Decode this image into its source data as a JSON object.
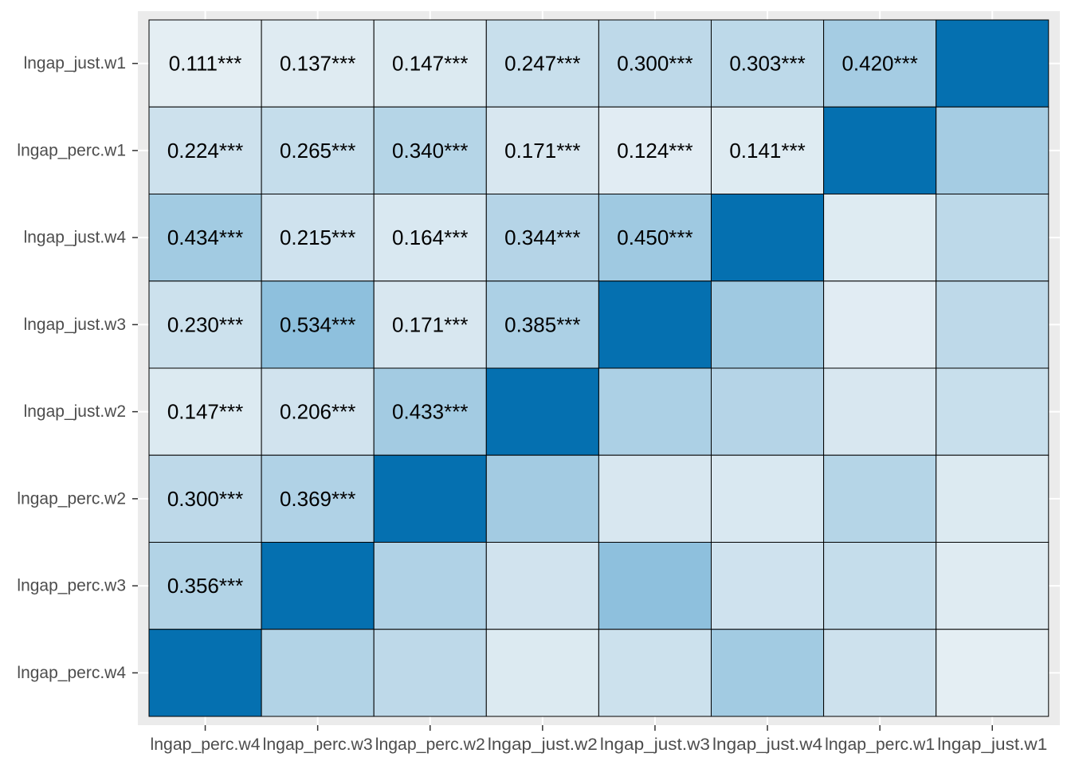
{
  "chart_data": {
    "type": "heatmap",
    "title": "",
    "xlabel": "",
    "ylabel": "",
    "x_categories": [
      "lngap_perc.w4",
      "lngap_perc.w3",
      "lngap_perc.w2",
      "lngap_just.w2",
      "lngap_just.w3",
      "lngap_just.w4",
      "lngap_perc.w1",
      "lngap_just.w1"
    ],
    "y_categories_top_to_bottom": [
      "lngap_just.w1",
      "lngap_perc.w1",
      "lngap_just.w4",
      "lngap_just.w3",
      "lngap_just.w2",
      "lngap_perc.w2",
      "lngap_perc.w3",
      "lngap_perc.w4"
    ],
    "values": [
      [
        0.111,
        0.137,
        0.147,
        0.247,
        0.3,
        0.303,
        0.42,
        1.0
      ],
      [
        0.224,
        0.265,
        0.34,
        0.171,
        0.124,
        0.141,
        1.0,
        0.42
      ],
      [
        0.434,
        0.215,
        0.164,
        0.344,
        0.45,
        1.0,
        0.141,
        0.303
      ],
      [
        0.23,
        0.534,
        0.171,
        0.385,
        1.0,
        0.45,
        0.124,
        0.3
      ],
      [
        0.147,
        0.206,
        0.433,
        1.0,
        0.385,
        0.344,
        0.171,
        0.247
      ],
      [
        0.3,
        0.369,
        1.0,
        0.433,
        0.171,
        0.164,
        0.34,
        0.147
      ],
      [
        0.356,
        1.0,
        0.369,
        0.206,
        0.534,
        0.215,
        0.265,
        0.137
      ],
      [
        1.0,
        0.356,
        0.3,
        0.147,
        0.23,
        0.434,
        0.224,
        0.111
      ]
    ],
    "labels": [
      [
        "0.111***",
        "0.137***",
        "0.147***",
        "0.247***",
        "0.300***",
        "0.303***",
        "0.420***",
        ""
      ],
      [
        "0.224***",
        "0.265***",
        "0.340***",
        "0.171***",
        "0.124***",
        "0.141***",
        "",
        ""
      ],
      [
        "0.434***",
        "0.215***",
        "0.164***",
        "0.344***",
        "0.450***",
        "",
        "",
        ""
      ],
      [
        "0.230***",
        "0.534***",
        "0.171***",
        "0.385***",
        "",
        "",
        "",
        ""
      ],
      [
        "0.147***",
        "0.206***",
        "0.433***",
        "",
        "",
        "",
        "",
        ""
      ],
      [
        "0.300***",
        "0.369***",
        "",
        "",
        "",
        "",
        "",
        ""
      ],
      [
        "0.356***",
        "",
        "",
        "",
        "",
        "",
        "",
        ""
      ],
      [
        "",
        "",
        "",
        "",
        "",
        "",
        "",
        ""
      ]
    ],
    "color_scale": {
      "low": "#e6eff4",
      "mid": "#8bbedc",
      "high": "#0570b0"
    },
    "panel_background": "#ebebeb",
    "grid": true,
    "legend": "none"
  }
}
